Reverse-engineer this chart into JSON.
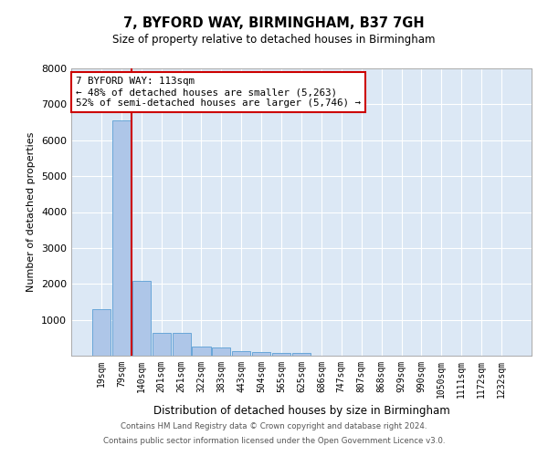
{
  "title": "7, BYFORD WAY, BIRMINGHAM, B37 7GH",
  "subtitle": "Size of property relative to detached houses in Birmingham",
  "xlabel": "Distribution of detached houses by size in Birmingham",
  "ylabel": "Number of detached properties",
  "bin_labels": [
    "19sqm",
    "79sqm",
    "140sqm",
    "201sqm",
    "261sqm",
    "322sqm",
    "383sqm",
    "443sqm",
    "504sqm",
    "565sqm",
    "625sqm",
    "686sqm",
    "747sqm",
    "807sqm",
    "868sqm",
    "929sqm",
    "990sqm",
    "1050sqm",
    "1111sqm",
    "1172sqm",
    "1232sqm"
  ],
  "bar_values": [
    1300,
    6550,
    2080,
    640,
    640,
    250,
    230,
    130,
    100,
    70,
    70,
    0,
    0,
    0,
    0,
    0,
    0,
    0,
    0,
    0,
    0
  ],
  "bar_color": "#aec6e8",
  "bar_edge_color": "#5a9fd4",
  "vline_x": 1.5,
  "annotation_text": "7 BYFORD WAY: 113sqm\n← 48% of detached houses are smaller (5,263)\n52% of semi-detached houses are larger (5,746) →",
  "annotation_box_color": "#ffffff",
  "annotation_box_edge": "#cc0000",
  "vline_color": "#cc0000",
  "ylim": [
    0,
    8000
  ],
  "yticks": [
    0,
    1000,
    2000,
    3000,
    4000,
    5000,
    6000,
    7000,
    8000
  ],
  "background_color": "#dce8f5",
  "grid_color": "#ffffff",
  "fig_background": "#ffffff",
  "footer1": "Contains HM Land Registry data © Crown copyright and database right 2024.",
  "footer2": "Contains public sector information licensed under the Open Government Licence v3.0."
}
